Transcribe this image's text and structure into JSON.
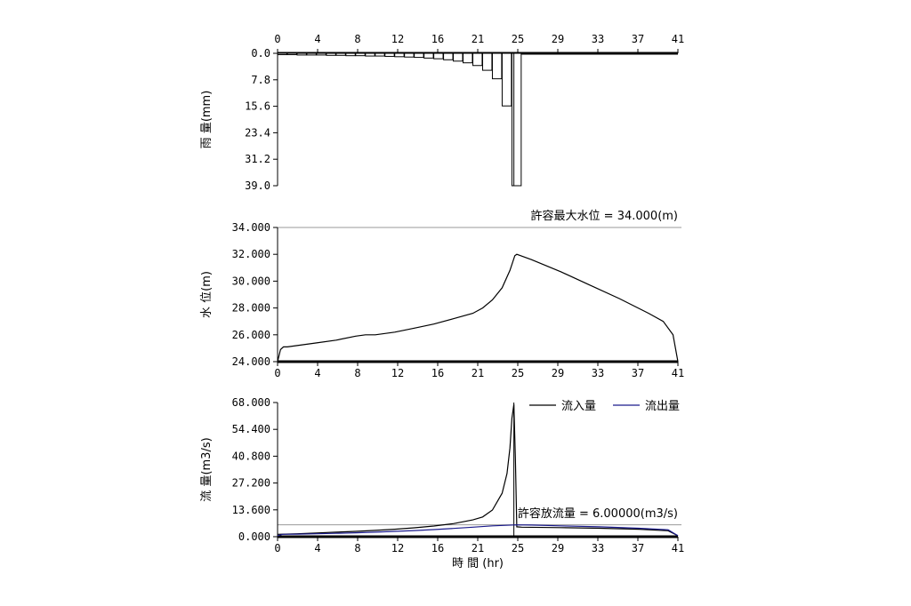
{
  "chart_data": [
    {
      "type": "bar",
      "ylabel": "雨  量(mm)",
      "x_ticks": [
        "0",
        "4",
        "8",
        "12",
        "16",
        "21",
        "25",
        "29",
        "33",
        "37",
        "41"
      ],
      "y_ticks": [
        "0.0",
        "7.8",
        "15.6",
        "23.4",
        "31.2",
        "39.0"
      ],
      "ylim": [
        39.0,
        0.0
      ],
      "xlim": [
        0,
        41
      ],
      "inverted_y": true,
      "hours": [
        0,
        1,
        2,
        3,
        4,
        5,
        6,
        7,
        8,
        9,
        10,
        11,
        12,
        13,
        14,
        15,
        16,
        17,
        18,
        19,
        20,
        21,
        22,
        23,
        24,
        25,
        26,
        27,
        28,
        29,
        30,
        31,
        32,
        33,
        34,
        35,
        36,
        37,
        38,
        39,
        40
      ],
      "values": [
        0.4,
        0.4,
        0.5,
        0.5,
        0.5,
        0.6,
        0.6,
        0.7,
        0.7,
        0.8,
        0.8,
        0.9,
        1.0,
        1.1,
        1.2,
        1.4,
        1.6,
        1.9,
        2.3,
        2.8,
        3.6,
        5.0,
        7.5,
        15.5,
        39.0,
        0,
        0,
        0,
        0,
        0,
        0,
        0,
        0,
        0,
        0,
        0,
        0,
        0,
        0,
        0,
        0
      ],
      "peak_marker_x": 24.2
    },
    {
      "type": "line",
      "ylabel": "水  位(m)",
      "x_ticks": [
        "0",
        "4",
        "8",
        "12",
        "16",
        "21",
        "25",
        "29",
        "33",
        "37",
        "41"
      ],
      "y_ticks": [
        "24.000",
        "26.000",
        "28.000",
        "30.000",
        "32.000",
        "34.000"
      ],
      "ylim": [
        24.0,
        34.0
      ],
      "xlim": [
        0,
        41
      ],
      "annotation": "許容最大水位 = 34.000(m)",
      "limit_value": 34.0,
      "series": [
        {
          "name": "",
          "points": [
            [
              0,
              24.0
            ],
            [
              0.3,
              24.9
            ],
            [
              0.6,
              25.1
            ],
            [
              1,
              25.1
            ],
            [
              2,
              25.2
            ],
            [
              4,
              25.4
            ],
            [
              6,
              25.6
            ],
            [
              8,
              25.9
            ],
            [
              9,
              26.0
            ],
            [
              10,
              26.0
            ],
            [
              12,
              26.2
            ],
            [
              14,
              26.5
            ],
            [
              16,
              26.8
            ],
            [
              18,
              27.2
            ],
            [
              20,
              27.6
            ],
            [
              21,
              28.0
            ],
            [
              22,
              28.6
            ],
            [
              23,
              29.5
            ],
            [
              23.8,
              30.8
            ],
            [
              24.3,
              31.9
            ],
            [
              24.5,
              32.0
            ],
            [
              26,
              31.6
            ],
            [
              29,
              30.7
            ],
            [
              32,
              29.7
            ],
            [
              35,
              28.7
            ],
            [
              38,
              27.6
            ],
            [
              39.5,
              27.0
            ],
            [
              40.5,
              26.0
            ],
            [
              41,
              24.0
            ]
          ]
        }
      ]
    },
    {
      "type": "line",
      "ylabel": "流  量(m3/s)",
      "xlabel": "時  間 (hr)",
      "x_ticks": [
        "0",
        "4",
        "8",
        "12",
        "16",
        "21",
        "25",
        "29",
        "33",
        "37",
        "41"
      ],
      "y_ticks": [
        "0.000",
        "13.600",
        "27.200",
        "40.800",
        "54.400",
        "68.000"
      ],
      "ylim": [
        0,
        68.0
      ],
      "xlim": [
        0,
        41
      ],
      "annotation": "許容放流量 =  6.00000(m3/s)",
      "limit_value": 6.0,
      "legend_position": "top-right",
      "peak_marker_x": 24.2,
      "series": [
        {
          "name": "流入量",
          "color": "#000000",
          "points": [
            [
              0,
              1.2
            ],
            [
              2,
              1.5
            ],
            [
              4,
              1.9
            ],
            [
              6,
              2.3
            ],
            [
              8,
              2.7
            ],
            [
              10,
              3.2
            ],
            [
              12,
              3.8
            ],
            [
              14,
              4.5
            ],
            [
              16,
              5.4
            ],
            [
              18,
              6.6
            ],
            [
              20,
              8.5
            ],
            [
              21,
              10.0
            ],
            [
              22,
              13.5
            ],
            [
              23,
              22.0
            ],
            [
              23.5,
              32.0
            ],
            [
              23.8,
              45.0
            ],
            [
              24.0,
              60.0
            ],
            [
              24.2,
              67.0
            ],
            [
              24.35,
              40.0
            ],
            [
              24.5,
              5.0
            ],
            [
              25,
              4.8
            ],
            [
              29,
              4.6
            ],
            [
              33,
              4.3
            ],
            [
              37,
              3.8
            ],
            [
              40,
              3.0
            ],
            [
              41,
              0.5
            ]
          ]
        },
        {
          "name": "流出量",
          "color": "#1a1a8c",
          "points": [
            [
              0,
              0.5
            ],
            [
              0.5,
              1.2
            ],
            [
              2,
              1.3
            ],
            [
              4,
              1.5
            ],
            [
              6,
              1.7
            ],
            [
              8,
              2.0
            ],
            [
              10,
              2.3
            ],
            [
              12,
              2.7
            ],
            [
              14,
              3.1
            ],
            [
              16,
              3.6
            ],
            [
              18,
              4.2
            ],
            [
              20,
              4.8
            ],
            [
              22,
              5.5
            ],
            [
              24.5,
              6.0
            ],
            [
              26,
              5.9
            ],
            [
              29,
              5.5
            ],
            [
              33,
              5.0
            ],
            [
              37,
              4.3
            ],
            [
              40,
              3.5
            ],
            [
              41,
              0.5
            ]
          ]
        }
      ]
    }
  ]
}
